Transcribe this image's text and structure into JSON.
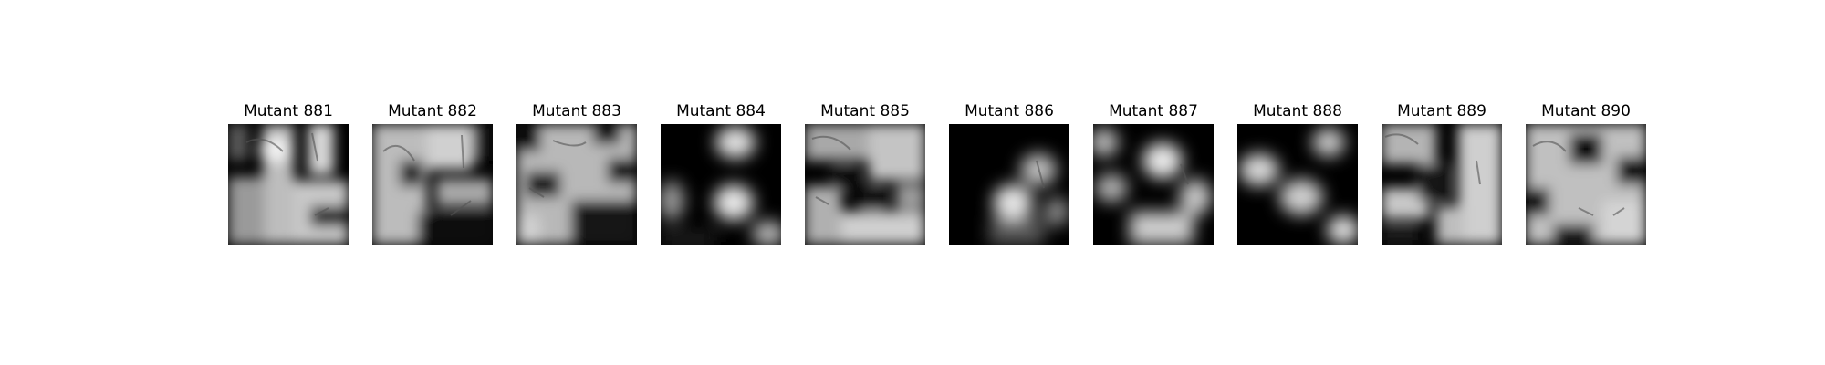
{
  "panels": [
    {
      "title": "Mutant 881",
      "brightness": 0.55
    },
    {
      "title": "Mutant 882",
      "brightness": 0.6
    },
    {
      "title": "Mutant 883",
      "brightness": 0.6
    },
    {
      "title": "Mutant 884",
      "brightness": 0.3
    },
    {
      "title": "Mutant 885",
      "brightness": 0.55
    },
    {
      "title": "Mutant 886",
      "brightness": 0.2
    },
    {
      "title": "Mutant 887",
      "brightness": 0.4
    },
    {
      "title": "Mutant 888",
      "brightness": 0.3
    },
    {
      "title": "Mutant 889",
      "brightness": 0.55
    },
    {
      "title": "Mutant 890",
      "brightness": 0.55
    }
  ]
}
